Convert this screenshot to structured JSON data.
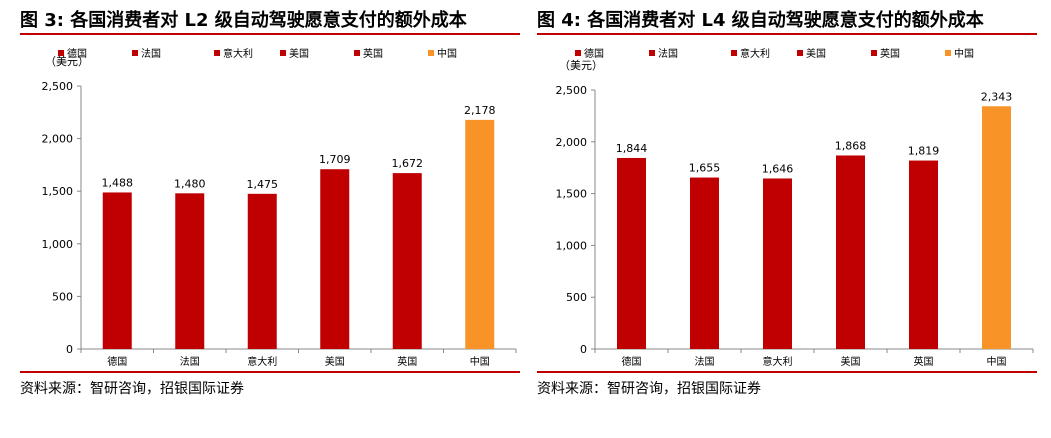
{
  "colors": {
    "bar": "#c00000",
    "highlight": "#f79327",
    "rule": "#c00000",
    "axis": "#888888"
  },
  "chart_data": [
    {
      "type": "bar",
      "title": "图 3: 各国消费者对 L2 级自动驾驶愿意支付的额外成本",
      "unit": "（美元）",
      "categories": [
        "德国",
        "法国",
        "意大利",
        "美国",
        "英国",
        "中国"
      ],
      "values": [
        1488,
        1480,
        1475,
        1709,
        1672,
        2178
      ],
      "value_labels": [
        "1,488",
        "1,480",
        "1,475",
        "1,709",
        "1,672",
        "2,178"
      ],
      "highlight_index": 5,
      "ylim": [
        0,
        2500
      ],
      "yticks": [
        0,
        500,
        1000,
        1500,
        2000,
        2500
      ],
      "ytick_labels": [
        "0",
        "500",
        "1,000",
        "1,500",
        "2,000",
        "2,500"
      ],
      "legend": [
        "德国",
        "法国",
        "意大利",
        "美国",
        "英国",
        "中国"
      ],
      "legend_position": "top",
      "grid": false,
      "source": "资料来源：智研咨询，招银国际证券"
    },
    {
      "type": "bar",
      "title": "图 4: 各国消费者对 L4 级自动驾驶愿意支付的额外成本",
      "unit": "（美元）",
      "categories": [
        "德国",
        "法国",
        "意大利",
        "美国",
        "英国",
        "中国"
      ],
      "values": [
        1844,
        1655,
        1646,
        1868,
        1819,
        2343
      ],
      "value_labels": [
        "1,844",
        "1,655",
        "1,646",
        "1,868",
        "1,819",
        "2,343"
      ],
      "highlight_index": 5,
      "ylim": [
        0,
        2500
      ],
      "yticks": [
        0,
        500,
        1000,
        1500,
        2000,
        2500
      ],
      "ytick_labels": [
        "0",
        "500",
        "1,000",
        "1,500",
        "2,000",
        "2,500"
      ],
      "legend": [
        "德国",
        "法国",
        "意大利",
        "美国",
        "英国",
        "中国"
      ],
      "legend_position": "top",
      "grid": false,
      "source": "资料来源：智研咨询，招银国际证券"
    }
  ]
}
